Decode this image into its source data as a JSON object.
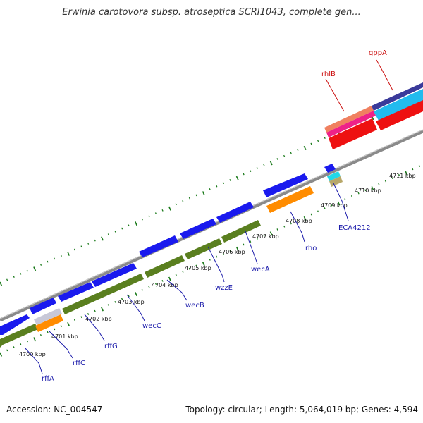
{
  "title": "Erwinia carotovora subsp. atroseptica SCRI1043, complete gen...",
  "footer": {
    "accession": "Accession: NC_004547",
    "summary": "Topology: circular; Length: 5,064,019 bp; Genes: 4,594"
  },
  "colors": {
    "forward_cds": "#1a1aee",
    "reverse_cds": "#5a7f1f",
    "orange": "#ff8c00",
    "red": "#ee1111",
    "backbone": "#888888",
    "tick": "#1a7a1a",
    "label_blue": "#1a1aaa",
    "label_red": "#cc1111"
  },
  "tick_labels": [
    {
      "text": "4700 kbp"
    },
    {
      "text": "4701 kbp"
    },
    {
      "text": "4702 kbp"
    },
    {
      "text": "4703 kbp"
    },
    {
      "text": "4704 kbp"
    },
    {
      "text": "4705 kbp"
    },
    {
      "text": "4706 kbp"
    },
    {
      "text": "4707 kbp"
    },
    {
      "text": "4708 kbp"
    },
    {
      "text": "4709 kbp"
    },
    {
      "text": "4710 kbp"
    },
    {
      "text": "4711 kbp"
    }
  ],
  "gene_labels": [
    {
      "text": "rffA",
      "color": "#1a1aaa"
    },
    {
      "text": "rffC",
      "color": "#1a1aaa"
    },
    {
      "text": "rffG",
      "color": "#1a1aaa"
    },
    {
      "text": "wecC",
      "color": "#1a1aaa"
    },
    {
      "text": "wecB",
      "color": "#1a1aaa"
    },
    {
      "text": "wzzE",
      "color": "#1a1aaa"
    },
    {
      "text": "wecA",
      "color": "#1a1aaa"
    },
    {
      "text": "rho",
      "color": "#1a1aaa"
    },
    {
      "text": "ECA4212",
      "color": "#1a1aaa"
    },
    {
      "text": "rhlB",
      "color": "#cc1111"
    },
    {
      "text": "gppA",
      "color": "#cc1111"
    }
  ]
}
